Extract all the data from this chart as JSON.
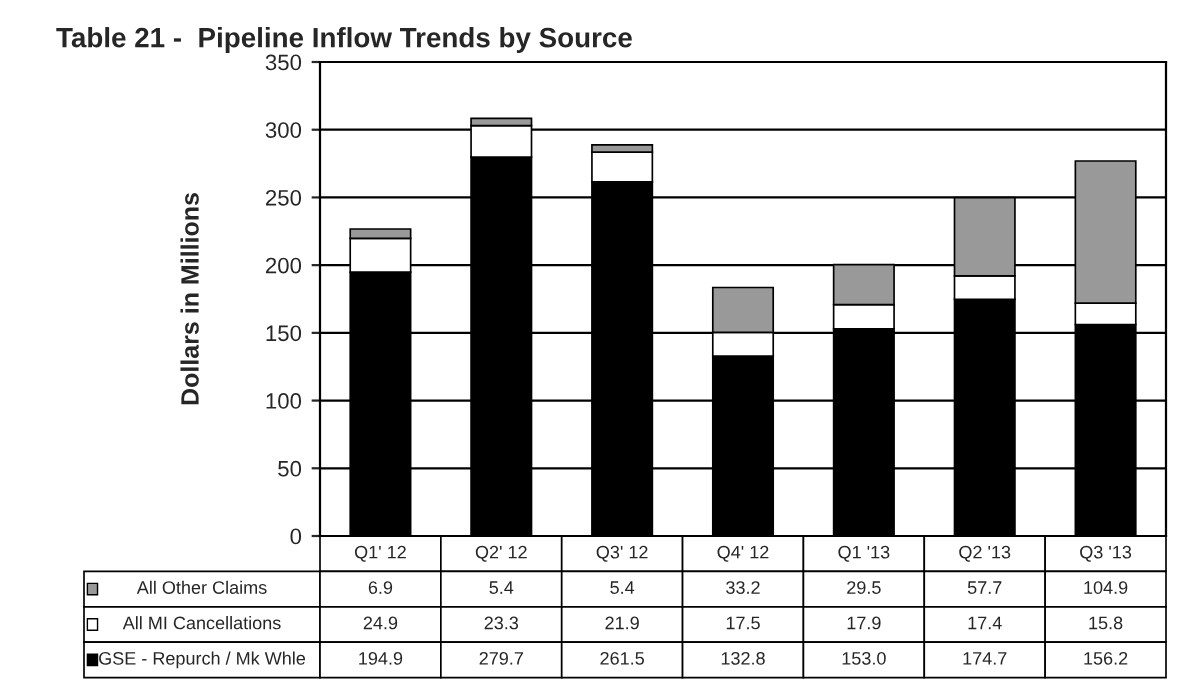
{
  "chart_data": {
    "type": "bar",
    "title": "Table 21 -  Pipeline Inflow Trends by Source",
    "ylabel": "Dollars in Millions",
    "categories": [
      "Q1' 12",
      "Q2' 12",
      "Q3' 12",
      "Q4' 12",
      "Q1 '13",
      "Q2 '13",
      "Q3 '13"
    ],
    "stacked": true,
    "series": [
      {
        "name": "GSE - Repurch / Mk Whle",
        "color": "#000000",
        "values": [
          194.9,
          279.7,
          261.5,
          132.8,
          153.0,
          174.7,
          156.2
        ],
        "value_labels": [
          "194.9",
          "279.7",
          "261.5",
          "132.8",
          "153.0",
          "174.7",
          "156.2"
        ]
      },
      {
        "name": "All MI Cancellations",
        "color": "#ffffff",
        "values": [
          24.9,
          23.3,
          21.9,
          17.5,
          17.9,
          17.4,
          15.8
        ],
        "value_labels": [
          "24.9",
          "23.3",
          "21.9",
          "17.5",
          "17.9",
          "17.4",
          "15.8"
        ]
      },
      {
        "name": "All Other Claims",
        "color": "#999999",
        "values": [
          6.9,
          5.4,
          5.4,
          33.2,
          29.5,
          57.7,
          104.9
        ],
        "value_labels": [
          "6.9",
          "5.4",
          "5.4",
          "33.2",
          "29.5",
          "57.7",
          "104.9"
        ]
      }
    ],
    "ylim": [
      0,
      350
    ],
    "yticks": [
      0,
      50,
      100,
      150,
      200,
      250,
      300,
      350
    ],
    "grid": "y",
    "legend": "bottom"
  }
}
